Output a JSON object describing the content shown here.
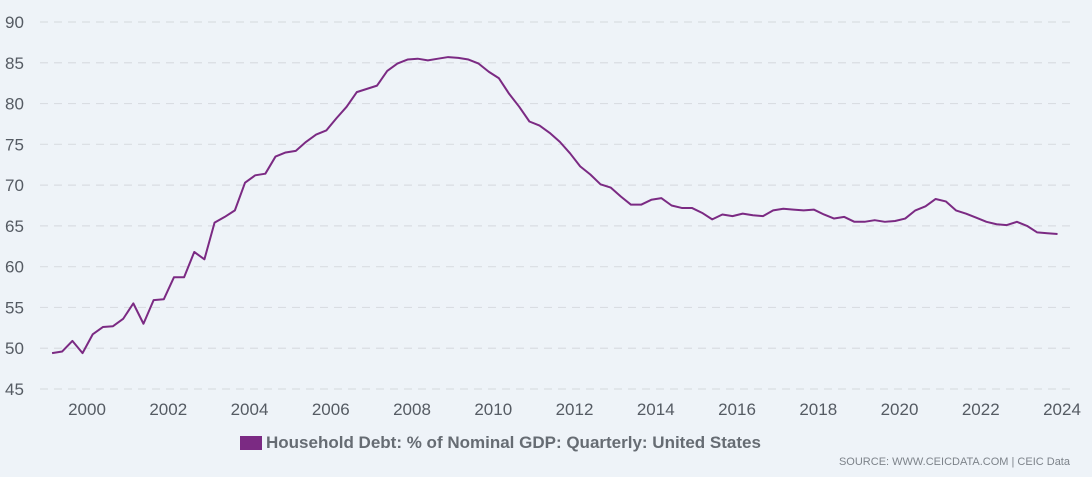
{
  "chart_data": {
    "type": "line",
    "title": "",
    "xlabel": "",
    "ylabel": "",
    "ylim": [
      45,
      90
    ],
    "xlim": [
      1999,
      2024
    ],
    "yticks": [
      45,
      50,
      55,
      60,
      65,
      70,
      75,
      80,
      85,
      90
    ],
    "xticks": [
      2000,
      2002,
      2004,
      2006,
      2008,
      2010,
      2012,
      2014,
      2016,
      2018,
      2020,
      2022,
      2024
    ],
    "grid": "horizontal-dashed",
    "legend_position": "bottom-center",
    "start": "1999-Q1",
    "frequency": "quarterly",
    "series": [
      {
        "name": "Household Debt: % of Nominal GDP: Quarterly: United States",
        "color": "#7b2a83",
        "values": [
          49.4,
          49.6,
          50.9,
          49.4,
          51.7,
          52.6,
          52.7,
          53.6,
          55.5,
          53.0,
          55.9,
          56.0,
          58.7,
          58.7,
          61.8,
          60.9,
          65.4,
          66.1,
          66.9,
          70.3,
          71.2,
          71.4,
          73.5,
          74.0,
          74.2,
          75.3,
          76.2,
          76.7,
          78.2,
          79.6,
          81.4,
          81.8,
          82.2,
          84.0,
          84.9,
          85.4,
          85.5,
          85.3,
          85.5,
          85.7,
          85.6,
          85.4,
          84.9,
          83.9,
          83.1,
          81.2,
          79.6,
          77.8,
          77.3,
          76.4,
          75.3,
          73.9,
          72.3,
          71.3,
          70.1,
          69.7,
          68.6,
          67.6,
          67.6,
          68.2,
          68.4,
          67.5,
          67.2,
          67.2,
          66.6,
          65.8,
          66.4,
          66.2,
          66.5,
          66.3,
          66.2,
          66.9,
          67.1,
          67.0,
          66.9,
          67.0,
          66.4,
          65.9,
          66.1,
          65.5,
          65.5,
          65.7,
          65.5,
          65.6,
          65.9,
          66.9,
          67.4,
          68.3,
          68.0,
          66.9,
          66.5,
          66.0,
          65.5,
          65.2,
          65.1,
          65.5,
          65.0,
          64.2,
          64.1,
          64.0
        ]
      }
    ]
  },
  "legend": {
    "label": "Household Debt: % of Nominal GDP: Quarterly: United States"
  },
  "source": "SOURCE: WWW.CEICDATA.COM | CEIC Data"
}
